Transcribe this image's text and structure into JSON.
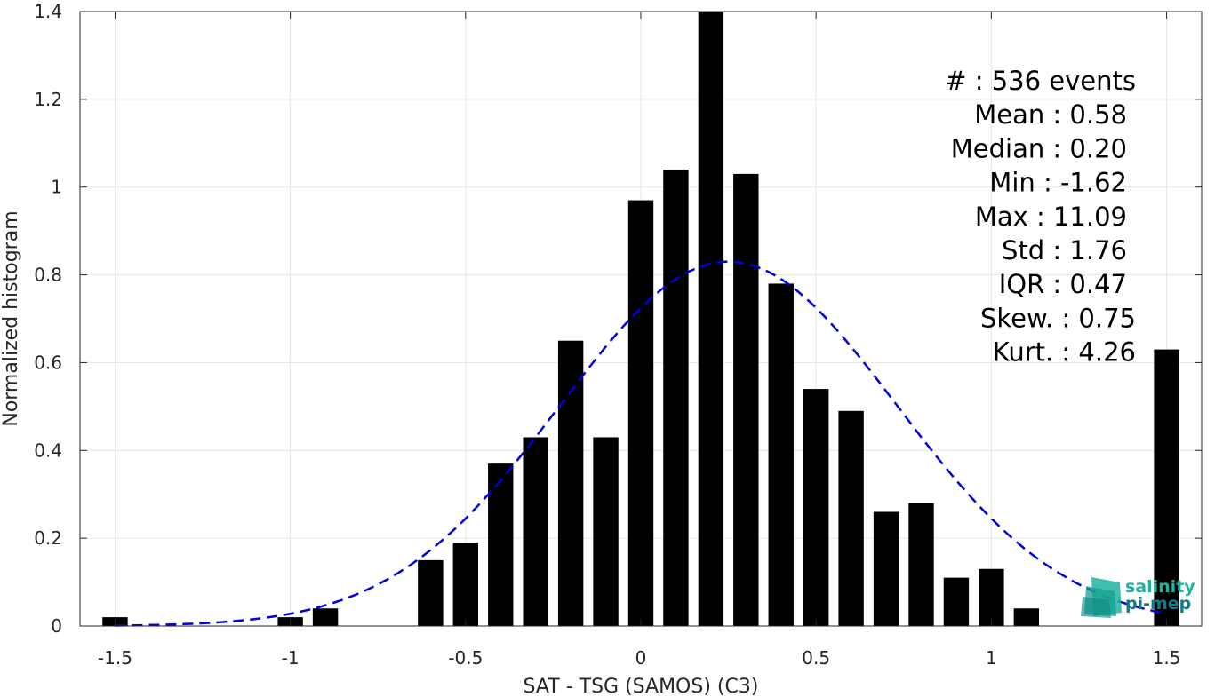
{
  "chart_data": {
    "type": "bar",
    "xlabel": "SAT - TSG (SAMOS) (C3)",
    "ylabel": "Normalized histogram",
    "xlim": [
      -1.6,
      1.6
    ],
    "ylim": [
      0,
      1.4
    ],
    "xticks": [
      -1.5,
      -1,
      -0.5,
      0,
      0.5,
      1,
      1.5
    ],
    "xtick_labels": [
      "-1.5",
      "-1",
      "-0.5",
      "0",
      "0.5",
      "1",
      "1.5"
    ],
    "yticks": [
      0,
      0.2,
      0.4,
      0.6,
      0.8,
      1,
      1.2,
      1.4
    ],
    "ytick_labels": [
      "0",
      "0.2",
      "0.4",
      "0.6",
      "0.8",
      "1",
      "1.2",
      "1.4"
    ],
    "grid": true,
    "bar_color": "#000000",
    "bins": [
      {
        "x": -1.5,
        "value": 0.02
      },
      {
        "x": -1.0,
        "value": 0.02
      },
      {
        "x": -0.9,
        "value": 0.04
      },
      {
        "x": -0.6,
        "value": 0.15
      },
      {
        "x": -0.5,
        "value": 0.19
      },
      {
        "x": -0.4,
        "value": 0.37
      },
      {
        "x": -0.3,
        "value": 0.43
      },
      {
        "x": -0.2,
        "value": 0.65
      },
      {
        "x": -0.1,
        "value": 0.43
      },
      {
        "x": 0.0,
        "value": 0.97
      },
      {
        "x": 0.1,
        "value": 1.04
      },
      {
        "x": 0.2,
        "value": 1.4
      },
      {
        "x": 0.3,
        "value": 1.03
      },
      {
        "x": 0.4,
        "value": 0.78
      },
      {
        "x": 0.5,
        "value": 0.54
      },
      {
        "x": 0.6,
        "value": 0.49
      },
      {
        "x": 0.7,
        "value": 0.26
      },
      {
        "x": 0.8,
        "value": 0.28
      },
      {
        "x": 0.9,
        "value": 0.11
      },
      {
        "x": 1.0,
        "value": 0.13
      },
      {
        "x": 1.1,
        "value": 0.04
      },
      {
        "x": 1.5,
        "value": 0.63
      }
    ],
    "fit_curve": {
      "style": "dashed",
      "color": "#0000dd",
      "mu": 0.25,
      "sigma": 0.48,
      "peak": 0.83,
      "x_range": [
        -1.5,
        1.5
      ]
    },
    "stats_lines": [
      "#  : 536 events",
      "Mean : 0.58",
      "Median : 0.20",
      "Min : -1.62",
      "Max : 11.09",
      "Std : 1.76",
      "IQR : 0.47",
      "Skew. : 0.75",
      "Kurt. : 4.26"
    ]
  },
  "logo": {
    "line1": "salinity",
    "line2": "pi-mep",
    "color1": "#1fb3a0",
    "color2": "#137a8a"
  }
}
